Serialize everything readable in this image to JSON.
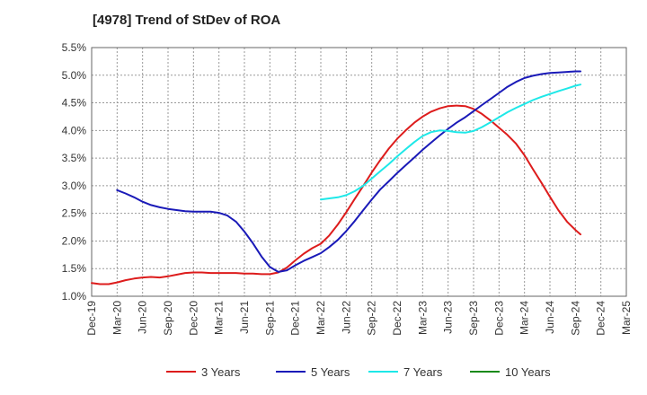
{
  "chart_data": {
    "type": "line",
    "title": "[4978]  Trend of StDev of ROA",
    "xlabel": "",
    "ylabel": "",
    "x_ticks": [
      "Dec-19",
      "Mar-20",
      "Jun-20",
      "Sep-20",
      "Dec-20",
      "Mar-21",
      "Jun-21",
      "Sep-21",
      "Dec-21",
      "Mar-22",
      "Jun-22",
      "Sep-22",
      "Dec-22",
      "Mar-23",
      "Jun-23",
      "Sep-23",
      "Dec-23",
      "Mar-24",
      "Jun-24",
      "Sep-24",
      "Dec-24",
      "Mar-25"
    ],
    "y_ticks": [
      "1.0%",
      "1.5%",
      "2.0%",
      "2.5%",
      "3.0%",
      "3.5%",
      "4.0%",
      "4.5%",
      "5.0%",
      "5.5%"
    ],
    "ylim": [
      1.0,
      5.5
    ],
    "grid": true,
    "legend_position": "bottom",
    "series": [
      {
        "name": "3 Years",
        "color": "#dd1c1c",
        "points": [
          [
            0,
            1.24
          ],
          [
            0.33,
            1.22
          ],
          [
            0.67,
            1.22
          ],
          [
            1,
            1.25
          ],
          [
            1.33,
            1.29
          ],
          [
            1.67,
            1.32
          ],
          [
            2,
            1.34
          ],
          [
            2.33,
            1.35
          ],
          [
            2.67,
            1.34
          ],
          [
            3,
            1.36
          ],
          [
            3.33,
            1.39
          ],
          [
            3.67,
            1.42
          ],
          [
            4,
            1.43
          ],
          [
            4.33,
            1.43
          ],
          [
            4.67,
            1.42
          ],
          [
            5,
            1.42
          ],
          [
            5.33,
            1.42
          ],
          [
            5.67,
            1.42
          ],
          [
            6,
            1.41
          ],
          [
            6.33,
            1.41
          ],
          [
            6.67,
            1.4
          ],
          [
            7,
            1.4
          ],
          [
            7.33,
            1.43
          ],
          [
            7.67,
            1.52
          ],
          [
            8,
            1.65
          ],
          [
            8.33,
            1.77
          ],
          [
            8.67,
            1.87
          ],
          [
            9,
            1.95
          ],
          [
            9.33,
            2.1
          ],
          [
            9.67,
            2.3
          ],
          [
            10,
            2.52
          ],
          [
            10.33,
            2.76
          ],
          [
            10.67,
            3.0
          ],
          [
            11,
            3.24
          ],
          [
            11.33,
            3.46
          ],
          [
            11.67,
            3.67
          ],
          [
            12,
            3.85
          ],
          [
            12.33,
            4.0
          ],
          [
            12.67,
            4.14
          ],
          [
            13,
            4.25
          ],
          [
            13.33,
            4.34
          ],
          [
            13.67,
            4.4
          ],
          [
            14,
            4.44
          ],
          [
            14.33,
            4.45
          ],
          [
            14.67,
            4.44
          ],
          [
            15,
            4.39
          ],
          [
            15.33,
            4.3
          ],
          [
            15.67,
            4.18
          ],
          [
            16,
            4.05
          ],
          [
            16.33,
            3.92
          ],
          [
            16.67,
            3.76
          ],
          [
            17,
            3.55
          ],
          [
            17.33,
            3.3
          ],
          [
            17.67,
            3.05
          ],
          [
            18,
            2.8
          ],
          [
            18.33,
            2.56
          ],
          [
            18.67,
            2.35
          ],
          [
            19,
            2.2
          ],
          [
            19.2,
            2.12
          ]
        ]
      },
      {
        "name": "5 Years",
        "color": "#1a1ab8",
        "points": [
          [
            1,
            2.92
          ],
          [
            1.33,
            2.86
          ],
          [
            1.67,
            2.79
          ],
          [
            2,
            2.71
          ],
          [
            2.33,
            2.65
          ],
          [
            2.67,
            2.61
          ],
          [
            3,
            2.58
          ],
          [
            3.33,
            2.56
          ],
          [
            3.67,
            2.54
          ],
          [
            4,
            2.53
          ],
          [
            4.33,
            2.53
          ],
          [
            4.67,
            2.53
          ],
          [
            5,
            2.51
          ],
          [
            5.33,
            2.46
          ],
          [
            5.67,
            2.35
          ],
          [
            6,
            2.17
          ],
          [
            6.33,
            1.96
          ],
          [
            6.67,
            1.72
          ],
          [
            7,
            1.53
          ],
          [
            7.33,
            1.44
          ],
          [
            7.67,
            1.47
          ],
          [
            8,
            1.56
          ],
          [
            8.33,
            1.64
          ],
          [
            8.67,
            1.71
          ],
          [
            9,
            1.78
          ],
          [
            9.33,
            1.89
          ],
          [
            9.67,
            2.02
          ],
          [
            10,
            2.18
          ],
          [
            10.33,
            2.36
          ],
          [
            10.67,
            2.56
          ],
          [
            11,
            2.75
          ],
          [
            11.33,
            2.93
          ],
          [
            11.67,
            3.08
          ],
          [
            12,
            3.23
          ],
          [
            12.33,
            3.37
          ],
          [
            12.67,
            3.51
          ],
          [
            13,
            3.65
          ],
          [
            13.33,
            3.78
          ],
          [
            13.67,
            3.91
          ],
          [
            14,
            4.03
          ],
          [
            14.33,
            4.14
          ],
          [
            14.67,
            4.24
          ],
          [
            15,
            4.35
          ],
          [
            15.33,
            4.46
          ],
          [
            15.67,
            4.57
          ],
          [
            16,
            4.68
          ],
          [
            16.33,
            4.79
          ],
          [
            16.67,
            4.88
          ],
          [
            17,
            4.95
          ],
          [
            17.33,
            4.99
          ],
          [
            17.67,
            5.02
          ],
          [
            18,
            5.04
          ],
          [
            18.33,
            5.05
          ],
          [
            18.67,
            5.06
          ],
          [
            19,
            5.07
          ],
          [
            19.2,
            5.07
          ]
        ]
      },
      {
        "name": "7 Years",
        "color": "#1ee8e8",
        "points": [
          [
            9,
            2.75
          ],
          [
            9.33,
            2.77
          ],
          [
            9.67,
            2.79
          ],
          [
            10,
            2.83
          ],
          [
            10.33,
            2.9
          ],
          [
            10.67,
            3.0
          ],
          [
            11,
            3.13
          ],
          [
            11.33,
            3.26
          ],
          [
            11.67,
            3.39
          ],
          [
            12,
            3.53
          ],
          [
            12.33,
            3.66
          ],
          [
            12.67,
            3.79
          ],
          [
            13,
            3.9
          ],
          [
            13.33,
            3.97
          ],
          [
            13.67,
            4.0
          ],
          [
            14,
            3.99
          ],
          [
            14.33,
            3.97
          ],
          [
            14.67,
            3.96
          ],
          [
            15,
            3.99
          ],
          [
            15.33,
            4.06
          ],
          [
            15.67,
            4.15
          ],
          [
            16,
            4.24
          ],
          [
            16.33,
            4.33
          ],
          [
            16.67,
            4.41
          ],
          [
            17,
            4.48
          ],
          [
            17.33,
            4.55
          ],
          [
            17.67,
            4.61
          ],
          [
            18,
            4.66
          ],
          [
            18.33,
            4.71
          ],
          [
            18.67,
            4.76
          ],
          [
            19,
            4.81
          ],
          [
            19.2,
            4.83
          ]
        ]
      },
      {
        "name": "10 Years",
        "color": "#1a8a1a",
        "points": []
      }
    ]
  }
}
